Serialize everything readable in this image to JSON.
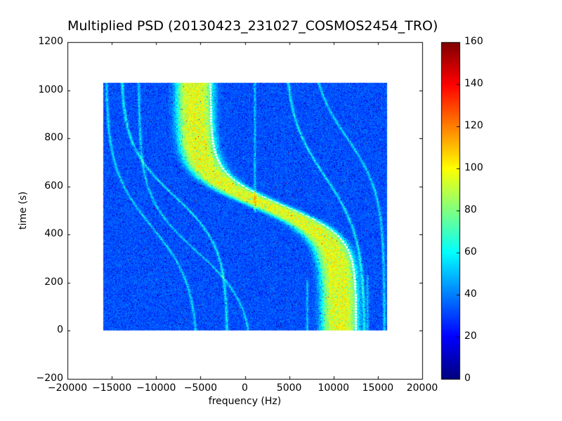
{
  "figure": {
    "background": "#ffffff"
  },
  "chart_data": {
    "type": "heatmap",
    "title": "Multiplied PSD (20130423_231027_COSMOS2454_TRO)",
    "xlabel": "frequency (Hz)",
    "ylabel": "time (s)",
    "xlim": [
      -20000,
      20000
    ],
    "ylim": [
      -200,
      1200
    ],
    "x_ticks": {
      "values": [
        -20000,
        -15000,
        -10000,
        -5000,
        0,
        5000,
        10000,
        15000,
        20000
      ],
      "labels": [
        "−20000",
        "−15000",
        "−10000",
        "−5000",
        "0",
        "5000",
        "10000",
        "15000",
        "20000"
      ]
    },
    "y_ticks": {
      "values": [
        -200,
        0,
        200,
        400,
        600,
        800,
        1000,
        1200
      ],
      "labels": [
        "−200",
        "0",
        "200",
        "400",
        "600",
        "800",
        "1000",
        "1200"
      ]
    },
    "colormap": "jet",
    "colorbar": {
      "vmin": 0,
      "vmax": 160,
      "tick_values": [
        0,
        20,
        40,
        60,
        80,
        100,
        120,
        140,
        160
      ],
      "tick_labels": [
        "0",
        "20",
        "40",
        "60",
        "80",
        "100",
        "120",
        "140",
        "160"
      ]
    },
    "data_extent": {
      "frequency_hz": [
        -16000,
        16000
      ],
      "time_s": [
        0,
        1030
      ]
    },
    "background_level": 33,
    "noise": {
      "spread": 16,
      "dark_speckle_prob": 0.045,
      "red_speckle_prob": 0.002
    },
    "doppler_band": {
      "f_center_hz": 2500,
      "amplitude_hz": 8200,
      "t_mid_s": 520,
      "tau_s": 130,
      "half_width_hz": 2100,
      "peak_value": 97,
      "carrier_offset_hz": 1800
    },
    "faint_traces": [
      {
        "f0_hz": 9000,
        "amplitude_hz": 4500,
        "t_mid_s": 640,
        "tau_s": 250,
        "sigma_hz": 160,
        "value": 60
      },
      {
        "f0_hz": 11500,
        "amplitude_hz": 4200,
        "t_mid_s": 800,
        "tau_s": 230,
        "sigma_hz": 150,
        "value": 57
      },
      {
        "f0_hz": -8000,
        "amplitude_hz": 6000,
        "t_mid_s": 560,
        "tau_s": 210,
        "sigma_hz": 160,
        "value": 60
      },
      {
        "f0_hz": -10500,
        "amplitude_hz": 5200,
        "t_mid_s": 430,
        "tau_s": 240,
        "sigma_hz": 150,
        "value": 56
      },
      {
        "f0_hz": -5500,
        "amplitude_hz": 6500,
        "t_mid_s": 330,
        "tau_s": 220,
        "sigma_hz": 150,
        "value": 55
      },
      {
        "f0_hz": 1100,
        "amplitude_hz": 0,
        "t_mid_s": 0,
        "tau_s": 1,
        "sigma_hz": 120,
        "value": 55,
        "t_min_s": 490,
        "t_max_s": 1030
      },
      {
        "f0_hz": 7000,
        "amplitude_hz": 0,
        "t_mid_s": 0,
        "tau_s": 1,
        "sigma_hz": 130,
        "value": 52,
        "t_min_s": 0,
        "t_max_s": 210
      },
      {
        "f0_hz": 13800,
        "amplitude_hz": 0,
        "t_mid_s": 0,
        "tau_s": 1,
        "sigma_hz": 140,
        "value": 51,
        "t_min_s": 0,
        "t_max_s": 230
      }
    ]
  }
}
